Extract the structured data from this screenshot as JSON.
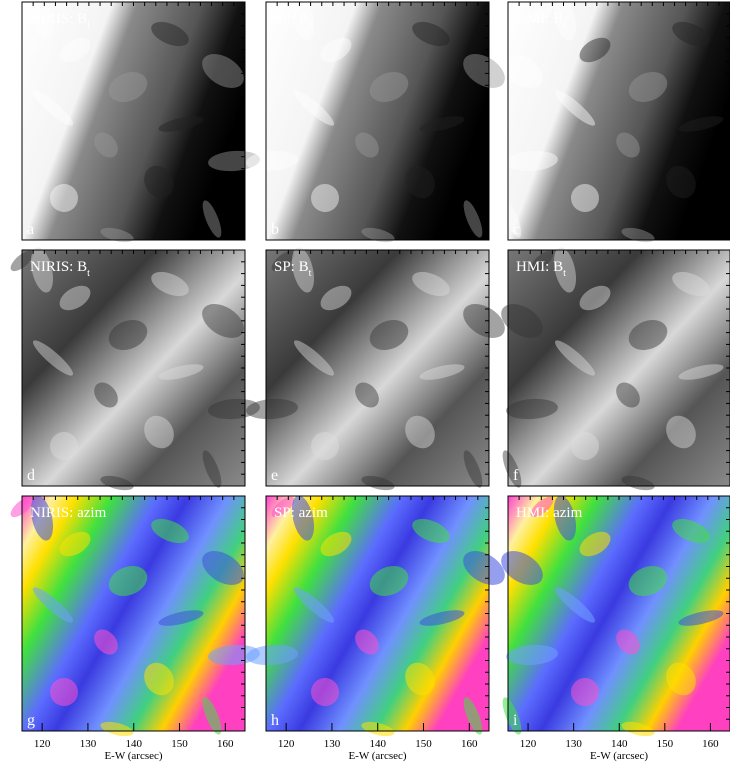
{
  "panels": [
    {
      "title": "NIRIS: B",
      "subscript": "l",
      "letter": "a"
    },
    {
      "title": "SP: B",
      "subscript": "l",
      "letter": "b"
    },
    {
      "title": "HMI: B",
      "subscript": "l",
      "letter": "c"
    },
    {
      "title": "NIRIS: B",
      "subscript": "t",
      "letter": "d"
    },
    {
      "title": "SP: B",
      "subscript": "t",
      "letter": "e"
    },
    {
      "title": "HMI: B",
      "subscript": "t",
      "letter": "f"
    },
    {
      "title": "NIRIS: azim",
      "letter": "g"
    },
    {
      "title": "SP: azim",
      "letter": "h"
    },
    {
      "title": "HMI: azim",
      "letter": "i"
    }
  ],
  "x_axis": {
    "label": "E-W (arcsec)",
    "xlim": [
      115.6,
      164.3
    ],
    "xticks": [
      120,
      130,
      140,
      150,
      160
    ]
  }
}
